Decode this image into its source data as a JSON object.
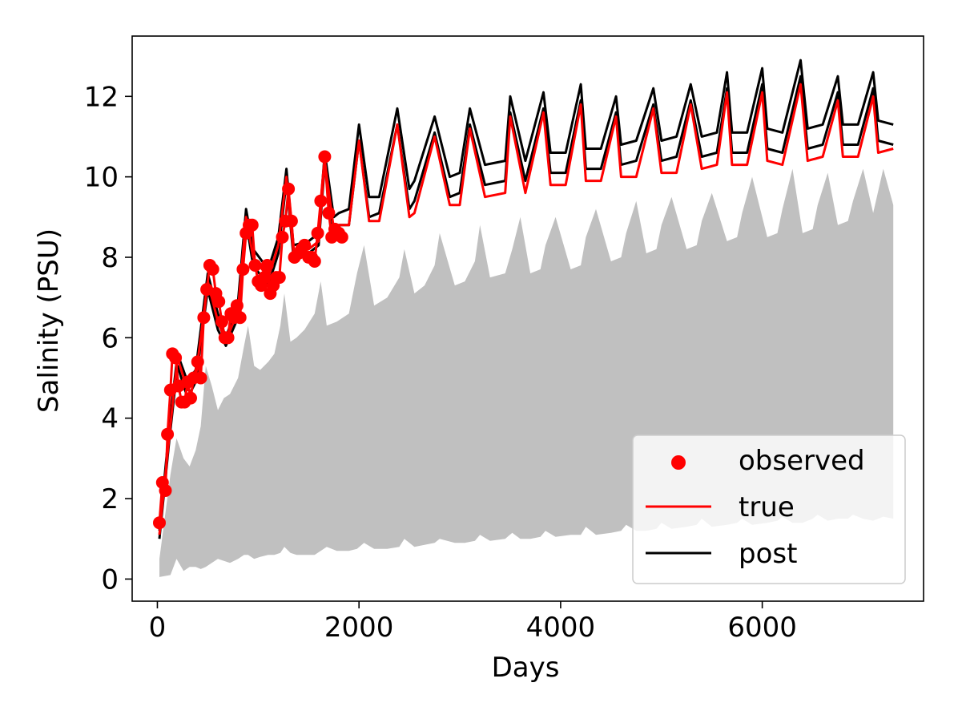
{
  "chart_data": {
    "type": "line",
    "title": "",
    "xlabel": "Days",
    "ylabel": "Salinity (PSU)",
    "xlim": [
      -250,
      7600
    ],
    "ylim": [
      -0.55,
      13.5
    ],
    "x_ticks": [
      0,
      2000,
      4000,
      6000
    ],
    "y_ticks": [
      0,
      2,
      4,
      6,
      8,
      10,
      12
    ],
    "legend_position": "bottom-right",
    "legend": [
      {
        "label": "observed",
        "marker": "circle"
      },
      {
        "label": "true",
        "marker": "line"
      },
      {
        "label": "post",
        "marker": "line"
      }
    ],
    "colors": {
      "observed": "#ff0000",
      "true": "#ff0000",
      "post": "#000000",
      "band": "#c0c0c0"
    },
    "series": [
      {
        "name": "post upper",
        "kind": "line",
        "color": "#000000",
        "x": [
          20,
          120,
          200,
          300,
          380,
          500,
          600,
          680,
          800,
          880,
          950,
          1100,
          1200,
          1280,
          1350,
          1500,
          1600,
          1660,
          1750,
          1800,
          1900,
          2000,
          2100,
          2200,
          2380,
          2500,
          2550,
          2750,
          2900,
          3000,
          3100,
          3250,
          3450,
          3500,
          3650,
          3830,
          3900,
          4050,
          4200,
          4250,
          4400,
          4550,
          4600,
          4750,
          4920,
          5000,
          5150,
          5290,
          5400,
          5550,
          5650,
          5700,
          5850,
          6000,
          6050,
          6200,
          6380,
          6450,
          6600,
          6750,
          6800,
          6950,
          7100,
          7150,
          7300
        ],
        "y": [
          1.2,
          3.8,
          5.6,
          4.9,
          5.2,
          7.6,
          6.6,
          6.0,
          6.9,
          9.2,
          8.2,
          7.7,
          8.5,
          10.2,
          8.3,
          8.4,
          8.6,
          10.6,
          9.0,
          9.1,
          9.2,
          11.3,
          9.5,
          9.5,
          11.7,
          9.7,
          9.9,
          11.5,
          10.0,
          10.1,
          11.7,
          10.3,
          10.4,
          12.0,
          10.4,
          12.1,
          10.6,
          10.6,
          12.3,
          10.7,
          10.7,
          12.0,
          10.8,
          10.9,
          12.2,
          10.9,
          11.0,
          12.3,
          11.0,
          11.1,
          12.6,
          11.1,
          11.1,
          12.7,
          11.2,
          11.1,
          12.9,
          11.2,
          11.3,
          12.5,
          11.3,
          11.3,
          12.6,
          11.4,
          11.3
        ]
      },
      {
        "name": "post lower",
        "kind": "line",
        "color": "#000000",
        "x": [
          20,
          120,
          200,
          300,
          380,
          500,
          600,
          680,
          800,
          880,
          950,
          1100,
          1200,
          1280,
          1350,
          1500,
          1600,
          1660,
          1750,
          1800,
          1900,
          2000,
          2100,
          2200,
          2380,
          2500,
          2550,
          2750,
          2900,
          3000,
          3100,
          3250,
          3450,
          3500,
          3650,
          3830,
          3900,
          4050,
          4200,
          4250,
          4400,
          4550,
          4600,
          4750,
          4920,
          5000,
          5150,
          5290,
          5400,
          5550,
          5650,
          5700,
          5850,
          6000,
          6050,
          6200,
          6380,
          6450,
          6600,
          6750,
          6800,
          6950,
          7100,
          7150,
          7300
        ],
        "y": [
          1.0,
          3.5,
          5.3,
          4.5,
          4.9,
          7.2,
          6.2,
          5.8,
          6.5,
          8.9,
          7.8,
          7.3,
          8.1,
          9.9,
          8.0,
          8.1,
          8.3,
          10.3,
          8.6,
          8.8,
          8.8,
          10.9,
          9.0,
          9.1,
          11.3,
          9.2,
          9.4,
          11.1,
          9.5,
          9.6,
          11.3,
          9.8,
          9.9,
          11.6,
          9.9,
          11.7,
          10.1,
          10.1,
          11.9,
          10.2,
          10.2,
          11.6,
          10.3,
          10.4,
          11.8,
          10.4,
          10.5,
          11.9,
          10.5,
          10.6,
          12.2,
          10.6,
          10.6,
          12.3,
          10.7,
          10.6,
          12.5,
          10.7,
          10.8,
          12.1,
          10.8,
          10.8,
          12.2,
          10.9,
          10.8
        ]
      },
      {
        "name": "true",
        "kind": "line",
        "color": "#ff0000",
        "x": [
          20,
          120,
          200,
          300,
          380,
          500,
          600,
          680,
          800,
          880,
          950,
          1100,
          1200,
          1280,
          1350,
          1500,
          1600,
          1660,
          1750,
          1800,
          1900,
          2000,
          2100,
          2200,
          2380,
          2500,
          2550,
          2750,
          2900,
          3000,
          3100,
          3250,
          3450,
          3500,
          3650,
          3830,
          3900,
          4050,
          4200,
          4250,
          4400,
          4550,
          4600,
          4750,
          4920,
          5000,
          5150,
          5290,
          5400,
          5550,
          5650,
          5700,
          5850,
          6000,
          6050,
          6200,
          6380,
          6450,
          6600,
          6750,
          6800,
          6950,
          7100,
          7150,
          7300
        ],
        "y": [
          1.1,
          3.6,
          5.5,
          4.7,
          5.0,
          7.4,
          6.4,
          5.9,
          6.7,
          9.0,
          8.0,
          7.5,
          8.3,
          10.0,
          8.1,
          8.2,
          8.4,
          10.4,
          8.7,
          8.8,
          8.8,
          10.9,
          8.9,
          8.9,
          11.3,
          9.0,
          9.1,
          11.0,
          9.3,
          9.3,
          11.2,
          9.5,
          9.6,
          11.5,
          9.6,
          11.6,
          9.8,
          9.8,
          11.8,
          9.9,
          9.9,
          11.5,
          10.0,
          10.0,
          11.7,
          10.1,
          10.1,
          11.8,
          10.2,
          10.3,
          12.1,
          10.3,
          10.3,
          12.1,
          10.4,
          10.3,
          12.3,
          10.4,
          10.5,
          11.9,
          10.5,
          10.5,
          12.0,
          10.6,
          10.7
        ]
      },
      {
        "name": "observed",
        "kind": "scatter",
        "color": "#ff0000",
        "x": [
          20,
          50,
          80,
          100,
          130,
          150,
          180,
          210,
          240,
          270,
          300,
          330,
          360,
          400,
          430,
          460,
          490,
          520,
          550,
          580,
          610,
          640,
          670,
          700,
          730,
          760,
          790,
          820,
          850,
          880,
          910,
          940,
          970,
          1000,
          1030,
          1060,
          1090,
          1120,
          1150,
          1180,
          1210,
          1240,
          1270,
          1300,
          1330,
          1360,
          1400,
          1430,
          1460,
          1500,
          1530,
          1560,
          1590,
          1620,
          1660,
          1700,
          1730,
          1760,
          1800,
          1830
        ],
        "y": [
          1.4,
          2.4,
          2.2,
          3.6,
          4.7,
          5.6,
          5.5,
          4.8,
          4.4,
          4.4,
          4.9,
          4.5,
          5.0,
          5.4,
          5.0,
          6.5,
          7.2,
          7.8,
          7.7,
          7.1,
          6.9,
          6.4,
          6.0,
          6.0,
          6.6,
          6.5,
          6.8,
          6.5,
          7.7,
          8.6,
          8.8,
          8.8,
          7.8,
          7.4,
          7.3,
          7.5,
          7.8,
          7.1,
          7.3,
          7.5,
          7.5,
          8.5,
          8.9,
          9.7,
          8.9,
          8.0,
          8.1,
          8.2,
          8.3,
          8.0,
          8.0,
          7.9,
          8.6,
          9.4,
          10.5,
          9.1,
          8.5,
          8.7,
          8.6,
          8.5
        ]
      },
      {
        "name": "prior band",
        "kind": "band",
        "color": "#c0c0c0",
        "x": [
          20,
          130,
          190,
          260,
          320,
          380,
          430,
          480,
          540,
          600,
          660,
          720,
          800,
          860,
          900,
          960,
          1020,
          1100,
          1160,
          1220,
          1260,
          1320,
          1380,
          1460,
          1560,
          1620,
          1680,
          1780,
          1900,
          1980,
          2050,
          2150,
          2280,
          2400,
          2450,
          2550,
          2650,
          2750,
          2800,
          2950,
          3050,
          3150,
          3200,
          3300,
          3450,
          3520,
          3600,
          3700,
          3800,
          3850,
          3950,
          4100,
          4200,
          4250,
          4350,
          4500,
          4600,
          4650,
          4750,
          4850,
          4950,
          5000,
          5100,
          5250,
          5350,
          5400,
          5500,
          5650,
          5750,
          5800,
          5900,
          6050,
          6150,
          6200,
          6300,
          6400,
          6500,
          6550,
          6650,
          6750,
          6850,
          6900,
          7000,
          7100,
          7200,
          7300
        ],
        "lower": [
          0.05,
          0.1,
          0.5,
          0.2,
          0.3,
          0.3,
          0.25,
          0.3,
          0.4,
          0.5,
          0.45,
          0.4,
          0.5,
          0.6,
          0.6,
          0.5,
          0.55,
          0.6,
          0.6,
          0.65,
          0.8,
          0.65,
          0.6,
          0.6,
          0.6,
          0.7,
          0.8,
          0.7,
          0.7,
          0.75,
          0.9,
          0.75,
          0.75,
          0.8,
          1.0,
          0.8,
          0.85,
          0.9,
          1.0,
          0.9,
          0.9,
          0.95,
          1.1,
          0.95,
          1.0,
          1.15,
          1.0,
          1.0,
          1.05,
          1.2,
          1.05,
          1.1,
          1.1,
          1.3,
          1.1,
          1.15,
          1.2,
          1.35,
          1.2,
          1.2,
          1.25,
          1.4,
          1.25,
          1.3,
          1.35,
          1.5,
          1.3,
          1.35,
          1.4,
          1.5,
          1.35,
          1.4,
          1.45,
          1.55,
          1.4,
          1.4,
          1.5,
          1.6,
          1.45,
          1.5,
          1.5,
          1.6,
          1.5,
          1.45,
          1.55,
          1.5
        ],
        "upper": [
          0.5,
          2.6,
          3.5,
          3.0,
          2.8,
          3.2,
          3.8,
          5.3,
          4.8,
          4.2,
          4.5,
          4.6,
          5.0,
          5.8,
          6.3,
          5.3,
          5.2,
          5.4,
          5.6,
          6.3,
          7.1,
          5.9,
          6.0,
          6.2,
          6.6,
          7.4,
          6.3,
          6.4,
          6.6,
          7.6,
          8.3,
          6.8,
          7.0,
          7.5,
          8.2,
          7.1,
          7.3,
          7.8,
          8.6,
          7.3,
          7.4,
          7.9,
          8.8,
          7.5,
          7.6,
          8.2,
          9.0,
          7.6,
          7.7,
          8.3,
          9.0,
          7.7,
          7.8,
          8.5,
          9.2,
          7.9,
          8.0,
          8.6,
          9.4,
          8.1,
          8.2,
          8.8,
          9.5,
          8.2,
          8.3,
          8.9,
          9.6,
          8.4,
          8.5,
          9.1,
          10.0,
          8.5,
          8.6,
          9.2,
          10.2,
          8.6,
          8.7,
          9.3,
          10.1,
          8.8,
          8.9,
          9.4,
          10.2,
          9.1,
          10.2,
          9.3
        ]
      }
    ]
  }
}
